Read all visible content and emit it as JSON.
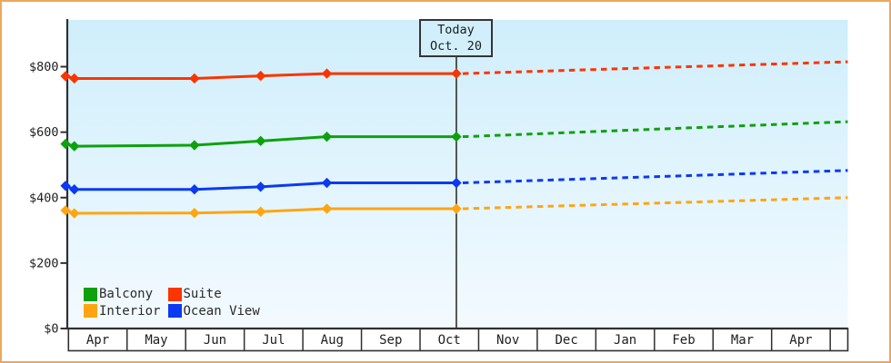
{
  "window": {
    "border_color": "#eba85c",
    "background_color": "#ffffff"
  },
  "chart_data": {
    "type": "line",
    "title": "",
    "description": "Cruise cabin price history by category with dotted forecast after today",
    "plot_background_gradient": {
      "top": "#cfeefb",
      "bottom": "#f3faff"
    },
    "axis_color": "#303030",
    "text_color": "#1e1e1e",
    "grid": false,
    "legend_position": "bottom-left-inside",
    "y_axis": {
      "tick_values": [
        0,
        200,
        400,
        600,
        800
      ],
      "tick_labels": [
        "$0",
        "$200",
        "$400",
        "$600",
        "$800"
      ],
      "range": [
        0,
        943
      ]
    },
    "x_axis": {
      "unit": "month",
      "labels": [
        "Apr",
        "May",
        "Jun",
        "Jul",
        "Aug",
        "Sep",
        "Oct",
        "Nov",
        "Dec",
        "Jan",
        "Feb",
        "Mar",
        "Apr"
      ],
      "range_t": [
        -0.05,
        13.3
      ],
      "note": "t measured in months; t=0 is the start of the first Apr column"
    },
    "today": {
      "line1": "Today",
      "line2": "Oct. 20",
      "t": 6.62
    },
    "series": [
      {
        "name": "Balcony",
        "color": "#0ea10e",
        "history": [
          {
            "t": -0.05,
            "price": 564
          },
          {
            "t": 0.1,
            "price": 557
          },
          {
            "t": 2.15,
            "price": 560
          },
          {
            "t": 3.28,
            "price": 573
          },
          {
            "t": 4.41,
            "price": 586
          },
          {
            "t": 6.62,
            "price": 586
          }
        ],
        "forecast_end": {
          "t": 13.3,
          "price": 632
        }
      },
      {
        "name": "Suite",
        "color": "#fa3500",
        "history": [
          {
            "t": -0.05,
            "price": 771
          },
          {
            "t": 0.1,
            "price": 764
          },
          {
            "t": 2.15,
            "price": 764
          },
          {
            "t": 3.28,
            "price": 772
          },
          {
            "t": 4.41,
            "price": 779
          },
          {
            "t": 6.62,
            "price": 779
          }
        ],
        "forecast_end": {
          "t": 13.3,
          "price": 815
        }
      },
      {
        "name": "Interior",
        "color": "#ffa511",
        "history": [
          {
            "t": -0.05,
            "price": 361
          },
          {
            "t": 0.1,
            "price": 352
          },
          {
            "t": 2.15,
            "price": 353
          },
          {
            "t": 3.28,
            "price": 357
          },
          {
            "t": 4.41,
            "price": 366
          },
          {
            "t": 6.62,
            "price": 366
          }
        ],
        "forecast_end": {
          "t": 13.3,
          "price": 400
        }
      },
      {
        "name": "Ocean View",
        "color": "#0b3af0",
        "history": [
          {
            "t": -0.05,
            "price": 436
          },
          {
            "t": 0.1,
            "price": 425
          },
          {
            "t": 2.15,
            "price": 425
          },
          {
            "t": 3.28,
            "price": 433
          },
          {
            "t": 4.41,
            "price": 445
          },
          {
            "t": 6.62,
            "price": 445
          }
        ],
        "forecast_end": {
          "t": 13.3,
          "price": 483
        }
      }
    ]
  }
}
